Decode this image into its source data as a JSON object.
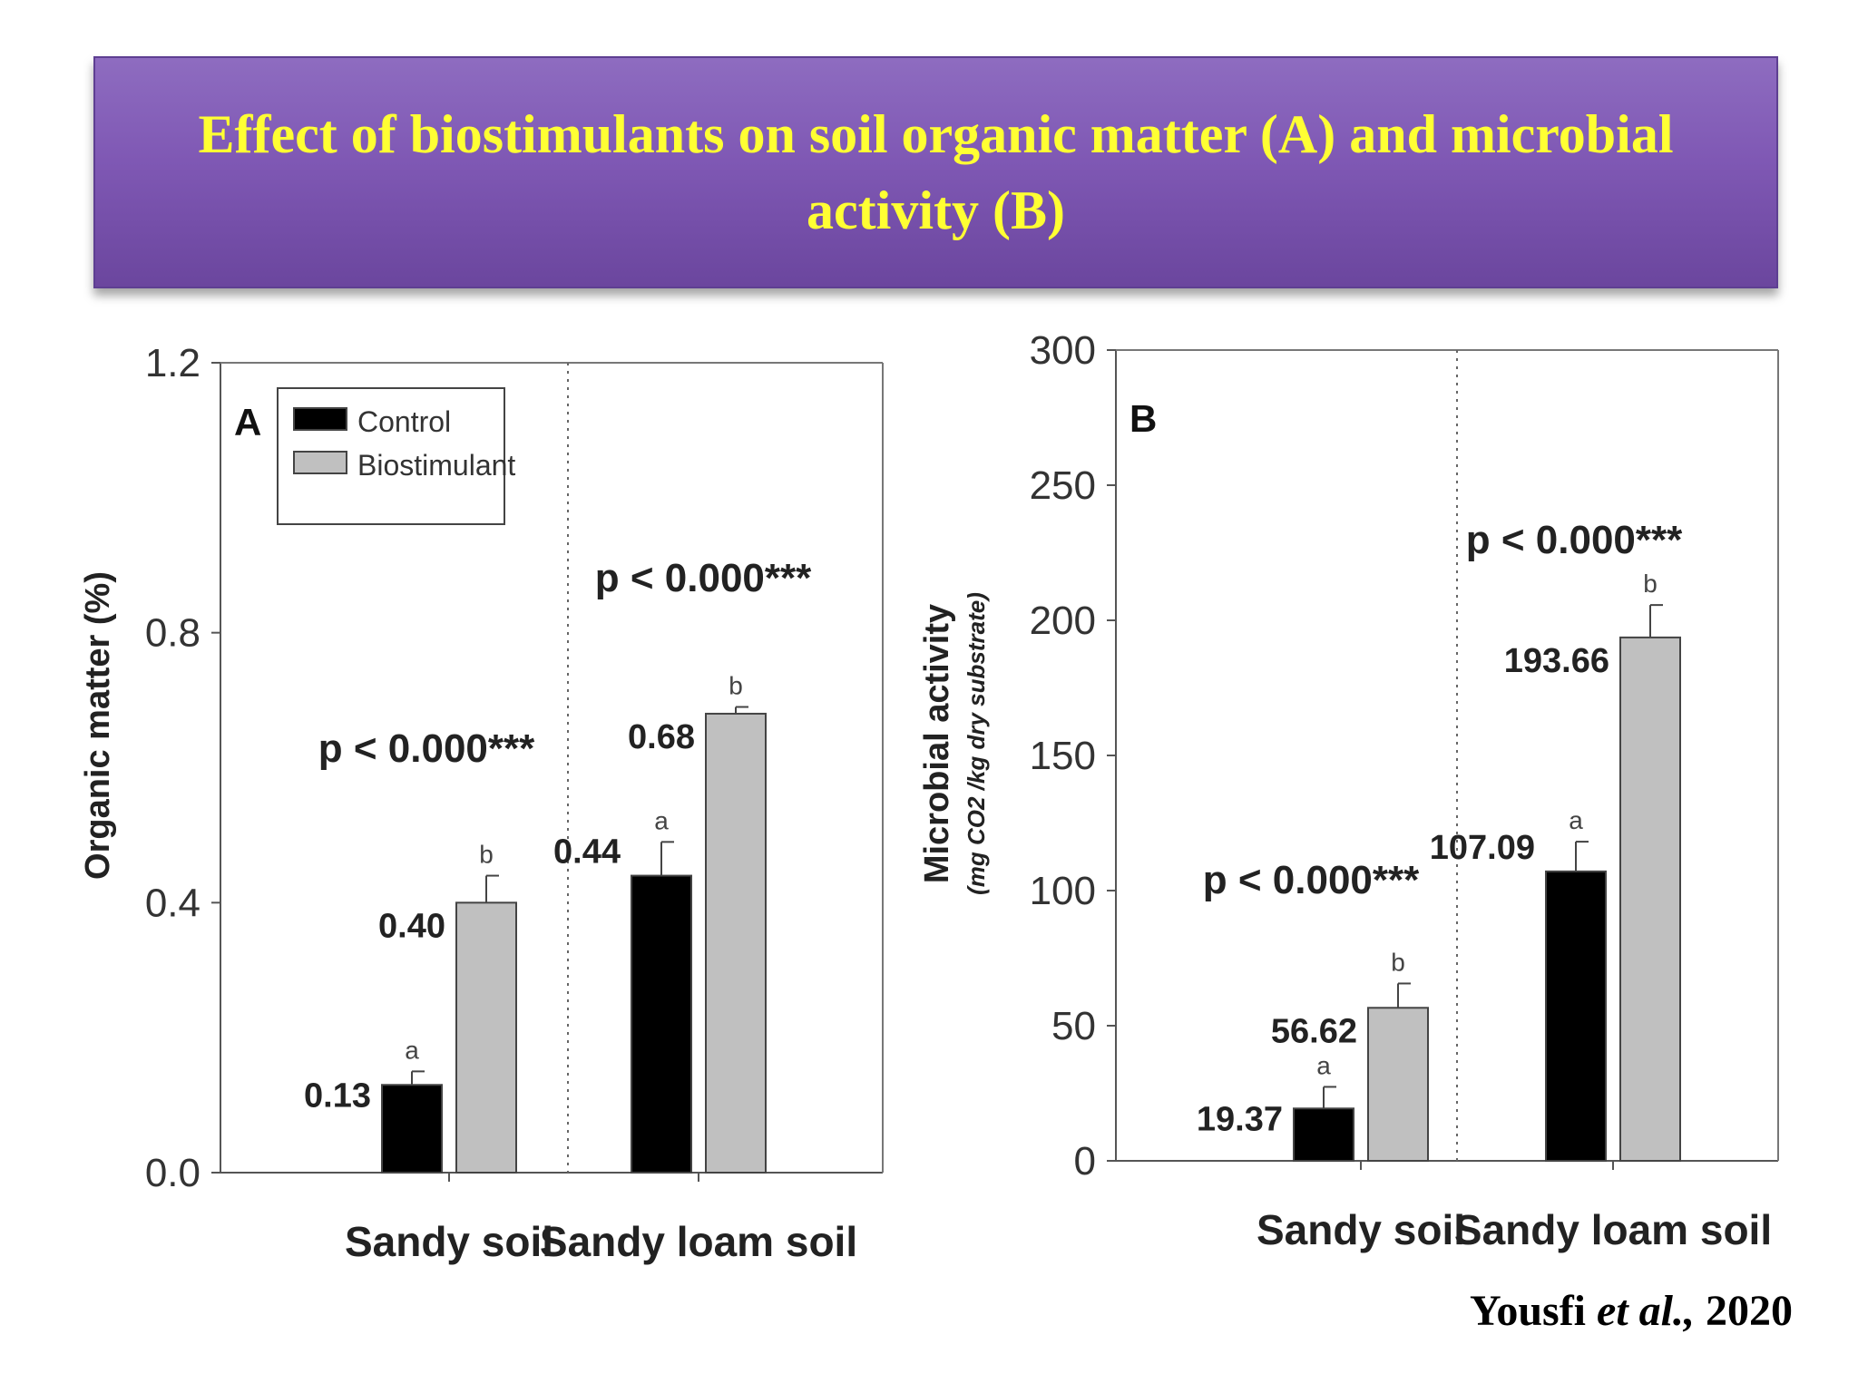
{
  "slide": {
    "title": "Effect of  biostimulants on soil organic matter (A) and microbial activity (B)",
    "title_color": "#ffff33",
    "banner_color": "#7f58b4"
  },
  "citation": {
    "author": "Yousfi",
    "etal": "et al.,",
    "year": "2020"
  },
  "chart_data": [
    {
      "type": "bar",
      "panel": "A",
      "ylabel": "Organic matter (%)",
      "ylim": [
        0,
        1.2
      ],
      "yticks": [
        "0.0",
        "0.4",
        "0.8",
        "1.2"
      ],
      "categories": [
        "Sandy soil",
        "Sandy loam soil"
      ],
      "series": [
        {
          "name": "Control",
          "values": [
            0.13,
            0.44
          ],
          "errors": [
            0.02,
            0.05
          ],
          "labels": [
            "0.13",
            "0.44"
          ],
          "letters": [
            "a",
            "a"
          ],
          "color": "#000000"
        },
        {
          "name": "Biostimulant",
          "values": [
            0.4,
            0.68
          ],
          "errors": [
            0.04,
            0.01
          ],
          "labels": [
            "0.40",
            "0.68"
          ],
          "letters": [
            "b",
            "b"
          ],
          "color": "#c0c0c0"
        }
      ],
      "pvalues": [
        "p < 0.000***",
        "p < 0.000***"
      ],
      "legend": "top-left",
      "grid": false
    },
    {
      "type": "bar",
      "panel": "B",
      "ylabel": "Microbial activity",
      "ylabel_sub": "(mg CO2 /kg dry substrate)",
      "ylim": [
        0,
        300
      ],
      "yticks": [
        "0",
        "50",
        "100",
        "150",
        "200",
        "250",
        "300"
      ],
      "categories": [
        "Sandy soil",
        "Sandy loam soil"
      ],
      "series": [
        {
          "name": "Control",
          "values": [
            19.37,
            107.09
          ],
          "errors": [
            8,
            11
          ],
          "labels": [
            "19.37",
            "107.09"
          ],
          "letters": [
            "a",
            "a"
          ],
          "color": "#000000"
        },
        {
          "name": "Biostimulant",
          "values": [
            56.62,
            193.66
          ],
          "errors": [
            9,
            12
          ],
          "labels": [
            "56.62",
            "193.66"
          ],
          "letters": [
            "b",
            "b"
          ],
          "color": "#c0c0c0"
        }
      ],
      "pvalues": [
        "p < 0.000***",
        "p < 0.000***"
      ],
      "grid": false
    }
  ]
}
